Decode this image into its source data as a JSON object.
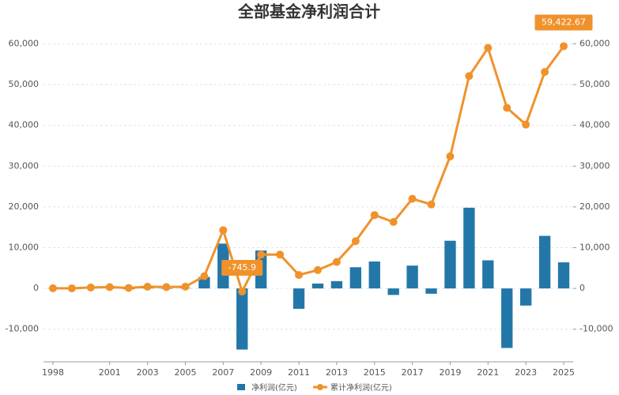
{
  "chart_data": {
    "type": "bar-line",
    "title": "全部基金净利润合计",
    "x": [
      1998,
      1999,
      2000,
      2001,
      2002,
      2003,
      2004,
      2005,
      2006,
      2007,
      2008,
      2009,
      2010,
      2011,
      2012,
      2013,
      2014,
      2015,
      2016,
      2017,
      2018,
      2019,
      2020,
      2021,
      2022,
      2023,
      2024,
      2025
    ],
    "xlim": [
      1997.5,
      2025.5
    ],
    "xticks": [
      1998,
      2001,
      2003,
      2005,
      2007,
      2009,
      2011,
      2013,
      2015,
      2017,
      2019,
      2021,
      2023,
      2025
    ],
    "ylim": [
      -18000,
      63000
    ],
    "yticks": [
      {
        "value": -10000,
        "label": "-10,000"
      },
      0,
      {
        "value": 10000,
        "label": "10,000"
      },
      {
        "value": 20000,
        "label": "20,000"
      },
      {
        "value": 30000,
        "label": "30,000"
      },
      {
        "value": 40000,
        "label": "40,000"
      },
      {
        "value": 50000,
        "label": "50,000"
      },
      {
        "value": 60000,
        "label": "60,000"
      }
    ],
    "y2lim": [
      -18000,
      63000
    ],
    "y2ticks": [
      {
        "value": -10000,
        "label": "-10,000"
      },
      0,
      {
        "value": 10000,
        "label": "10,000"
      },
      {
        "value": 20000,
        "label": "20,000"
      },
      {
        "value": 30000,
        "label": "30,000"
      },
      {
        "value": 40000,
        "label": "40,000"
      },
      {
        "value": 50000,
        "label": "50,000"
      },
      {
        "value": 60000,
        "label": "60,000"
      }
    ],
    "grid": true,
    "series": [
      {
        "name": "净利润(亿元)",
        "type": "bar",
        "color": "#2377a8",
        "values": [
          50,
          -20,
          200,
          100,
          -200,
          300,
          -100,
          100,
          2800,
          11000,
          -15000,
          9300,
          0,
          -5000,
          1200,
          1800,
          5200,
          6600,
          -1600,
          5600,
          -1300,
          11700,
          19800,
          6900,
          -14600,
          -4200,
          12900,
          6400
        ]
      },
      {
        "name": "累计净利润(亿元)",
        "type": "line",
        "axis": "y2",
        "color": "#f0922b",
        "values": [
          50,
          30,
          230,
          330,
          130,
          430,
          330,
          430,
          3000,
          14300,
          -745.9,
          8300,
          8300,
          3300,
          4500,
          6500,
          11600,
          18000,
          16300,
          22000,
          20600,
          32400,
          52100,
          59000,
          44300,
          40200,
          53100,
          59422.67
        ],
        "value_labels": [
          null,
          null,
          null,
          null,
          null,
          null,
          null,
          null,
          null,
          null,
          "-745.9",
          null,
          null,
          null,
          null,
          null,
          null,
          null,
          null,
          null,
          null,
          null,
          null,
          null,
          null,
          null,
          null,
          "59,422.67"
        ]
      }
    ]
  }
}
